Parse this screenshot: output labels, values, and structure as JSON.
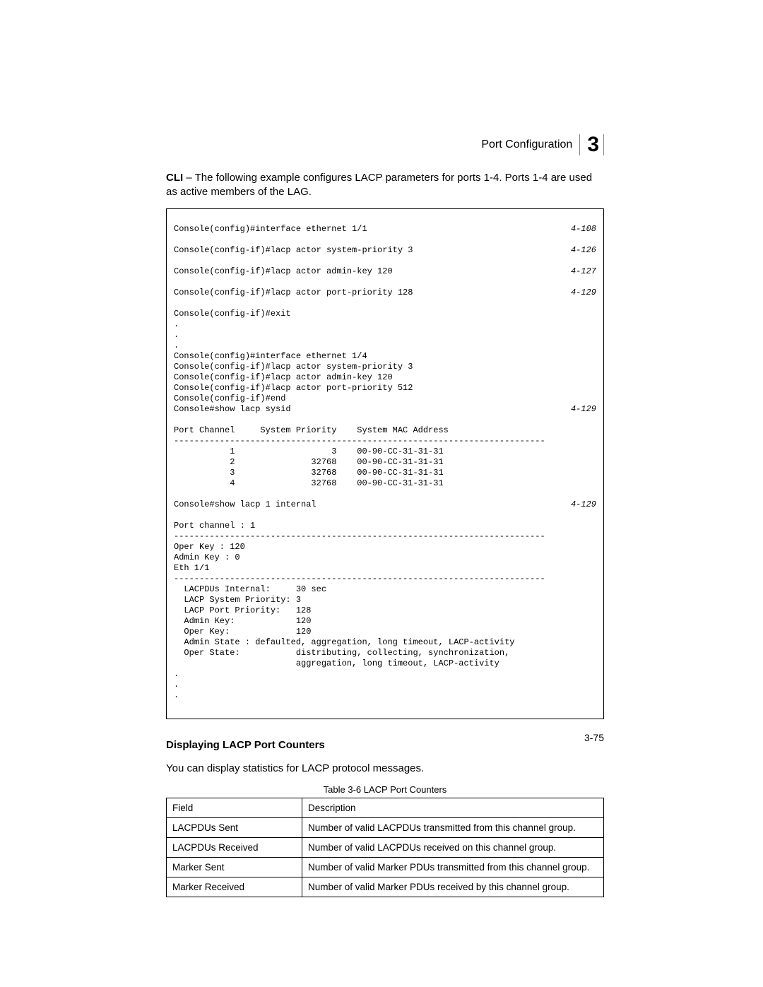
{
  "header": {
    "section_label": "Port Configuration",
    "chapter_number": "3"
  },
  "intro": {
    "prefix_bold": "CLI",
    "text": " – The following example configures LACP parameters for ports 1-4. Ports 1-4 are used as active members of the LAG."
  },
  "cli": {
    "font": "Courier New",
    "font_size_pt": 9,
    "ref_style": "italic",
    "lines_with_ref": [
      {
        "cmd": "Console(config)#interface ethernet 1/1",
        "ref": "4-108"
      },
      {
        "cmd": "Console(config-if)#lacp actor system-priority 3",
        "ref": "4-126"
      },
      {
        "cmd": "Console(config-if)#lacp actor admin-key 120",
        "ref": "4-127"
      },
      {
        "cmd": "Console(config-if)#lacp actor port-priority 128",
        "ref": "4-129"
      }
    ],
    "block1": "Console(config-if)#exit\n.\n.\n.\nConsole(config)#interface ethernet 1/4\nConsole(config-if)#lacp actor system-priority 3\nConsole(config-if)#lacp actor admin-key 120\nConsole(config-if)#lacp actor port-priority 512\nConsole(config-if)#end",
    "line_sysid": {
      "cmd": "Console#show lacp sysid",
      "ref": "4-129"
    },
    "block2": "Port Channel     System Priority    System MAC Address\n-------------------------------------------------------------------------\n           1                   3    00-90-CC-31-31-31\n           2               32768    00-90-CC-31-31-31\n           3               32768    00-90-CC-31-31-31\n           4               32768    00-90-CC-31-31-31\n",
    "line_internal": {
      "cmd": "Console#show lacp 1 internal",
      "ref": "4-129"
    },
    "block3": "Port channel : 1\n-------------------------------------------------------------------------\nOper Key : 120\nAdmin Key : 0\nEth 1/1\n-------------------------------------------------------------------------\n  LACPDUs Internal:     30 sec\n  LACP System Priority: 3\n  LACP Port Priority:   128\n  Admin Key:            120\n  Oper Key:             120\n  Admin State : defaulted, aggregation, long timeout, LACP-activity\n  Oper State:           distributing, collecting, synchronization,\n                        aggregation, long timeout, LACP-activity\n.\n.\n."
  },
  "section": {
    "heading": "Displaying LACP Port Counters",
    "paragraph": "You can display statistics for LACP protocol messages."
  },
  "table": {
    "caption": "Table 3-6  LACP Port Counters",
    "columns": [
      "Field",
      "Description"
    ],
    "rows": [
      [
        "LACPDUs Sent",
        "Number of valid LACPDUs transmitted from this channel group."
      ],
      [
        "LACPDUs Received",
        "Number of valid LACPDUs received on this channel group."
      ],
      [
        "Marker Sent",
        "Number of valid Marker PDUs transmitted from this channel group."
      ],
      [
        "Marker Received",
        "Number of valid Marker PDUs received by this channel group."
      ]
    ]
  },
  "footer": {
    "page_number": "3-75"
  }
}
